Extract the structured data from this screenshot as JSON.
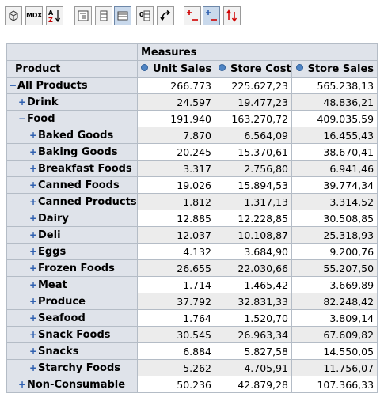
{
  "toolbar": {
    "buttons": [
      {
        "name": "cube-navigator-button",
        "icon": "cube-icon"
      },
      {
        "name": "mdx-button",
        "label": "MDX"
      },
      {
        "name": "sort-button",
        "icon": "sort-az-icon"
      },
      {
        "name": "show-parent-members-button",
        "icon": "parent-members-icon"
      },
      {
        "name": "hide-spans-button",
        "icon": "hide-spans-icon"
      },
      {
        "name": "show-properties-button",
        "icon": "properties-icon",
        "active": true
      },
      {
        "name": "suppress-empty-button",
        "icon": "suppress-empty-icon"
      },
      {
        "name": "swap-axes-button",
        "icon": "swap-axes-icon"
      },
      {
        "name": "drill-member-button",
        "icon": "drill-member-icon"
      },
      {
        "name": "drill-position-button",
        "icon": "drill-position-icon",
        "active": true
      },
      {
        "name": "drill-through-button",
        "icon": "drill-through-icon"
      }
    ]
  },
  "pivot": {
    "measures_label": "Measures",
    "row_dimension": "Product",
    "columns": [
      "Unit Sales",
      "Store Cost",
      "Store Sales"
    ],
    "rows": [
      {
        "label": "All Products",
        "level": 0,
        "state": "collapse",
        "values": [
          "266.773",
          "225.627,23",
          "565.238,13"
        ]
      },
      {
        "label": "Drink",
        "level": 1,
        "state": "expand",
        "values": [
          "24.597",
          "19.477,23",
          "48.836,21"
        ]
      },
      {
        "label": "Food",
        "level": 1,
        "state": "collapse",
        "values": [
          "191.940",
          "163.270,72",
          "409.035,59"
        ]
      },
      {
        "label": "Baked Goods",
        "level": 2,
        "state": "expand",
        "values": [
          "7.870",
          "6.564,09",
          "16.455,43"
        ]
      },
      {
        "label": "Baking Goods",
        "level": 2,
        "state": "expand",
        "values": [
          "20.245",
          "15.370,61",
          "38.670,41"
        ]
      },
      {
        "label": "Breakfast Foods",
        "level": 2,
        "state": "expand",
        "values": [
          "3.317",
          "2.756,80",
          "6.941,46"
        ]
      },
      {
        "label": "Canned Foods",
        "level": 2,
        "state": "expand",
        "values": [
          "19.026",
          "15.894,53",
          "39.774,34"
        ]
      },
      {
        "label": "Canned Products",
        "level": 2,
        "state": "expand",
        "values": [
          "1.812",
          "1.317,13",
          "3.314,52"
        ]
      },
      {
        "label": "Dairy",
        "level": 2,
        "state": "expand",
        "values": [
          "12.885",
          "12.228,85",
          "30.508,85"
        ]
      },
      {
        "label": "Deli",
        "level": 2,
        "state": "expand",
        "values": [
          "12.037",
          "10.108,87",
          "25.318,93"
        ]
      },
      {
        "label": "Eggs",
        "level": 2,
        "state": "expand",
        "values": [
          "4.132",
          "3.684,90",
          "9.200,76"
        ]
      },
      {
        "label": "Frozen Foods",
        "level": 2,
        "state": "expand",
        "values": [
          "26.655",
          "22.030,66",
          "55.207,50"
        ]
      },
      {
        "label": "Meat",
        "level": 2,
        "state": "expand",
        "values": [
          "1.714",
          "1.465,42",
          "3.669,89"
        ]
      },
      {
        "label": "Produce",
        "level": 2,
        "state": "expand",
        "values": [
          "37.792",
          "32.831,33",
          "82.248,42"
        ]
      },
      {
        "label": "Seafood",
        "level": 2,
        "state": "expand",
        "values": [
          "1.764",
          "1.520,70",
          "3.809,14"
        ]
      },
      {
        "label": "Snack Foods",
        "level": 2,
        "state": "expand",
        "values": [
          "30.545",
          "26.963,34",
          "67.609,82"
        ]
      },
      {
        "label": "Snacks",
        "level": 2,
        "state": "expand",
        "values": [
          "6.884",
          "5.827,58",
          "14.550,05"
        ]
      },
      {
        "label": "Starchy Foods",
        "level": 2,
        "state": "expand",
        "values": [
          "5.262",
          "4.705,91",
          "11.756,07"
        ]
      },
      {
        "label": "Non-Consumable",
        "level": 1,
        "state": "expand",
        "values": [
          "50.236",
          "42.879,28",
          "107.366,33"
        ]
      }
    ]
  },
  "colors": {
    "header_bg": "#dfe3ea",
    "grid_border": "#b4bcc6",
    "expand_icon": "#2f60b0",
    "even_row_bg": "#ececec"
  }
}
